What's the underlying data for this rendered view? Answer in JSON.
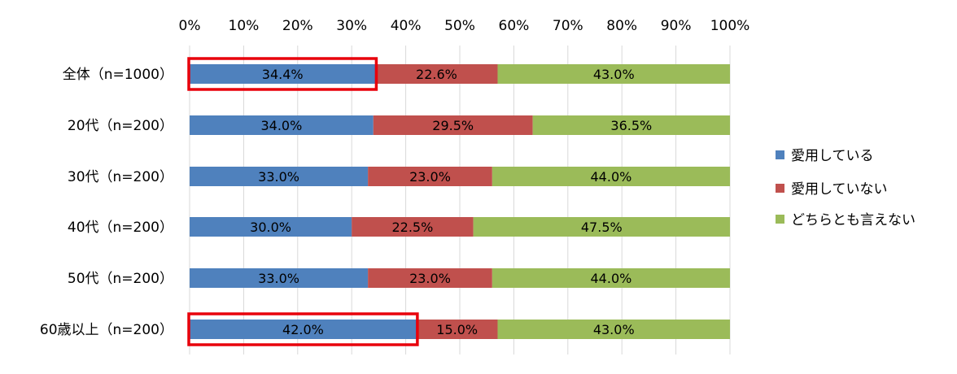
{
  "chart_data": {
    "type": "bar",
    "orientation": "horizontal",
    "stacked": "percent",
    "xlim": [
      0,
      100
    ],
    "x_ticks": [
      "0%",
      "10%",
      "20%",
      "30%",
      "40%",
      "50%",
      "60%",
      "70%",
      "80%",
      "90%",
      "100%"
    ],
    "categories": [
      "全体（n=1000）",
      "20代（n=200）",
      "30代（n=200）",
      "40代（n=200）",
      "50代（n=200）",
      "60歳以上（n=200）"
    ],
    "series": [
      {
        "name": "愛用している",
        "color": "#4f81bd",
        "values": [
          34.4,
          34.0,
          33.0,
          30.0,
          33.0,
          42.0
        ],
        "labels": [
          "34.4%",
          "34.0%",
          "33.0%",
          "30.0%",
          "33.0%",
          "42.0%"
        ]
      },
      {
        "name": "愛用していない",
        "color": "#c0504d",
        "values": [
          22.6,
          29.5,
          23.0,
          22.5,
          23.0,
          15.0
        ],
        "labels": [
          "22.6%",
          "29.5%",
          "23.0%",
          "22.5%",
          "23.0%",
          "15.0%"
        ]
      },
      {
        "name": "どちらとも言えない",
        "color": "#9bbb59",
        "values": [
          43.0,
          36.5,
          44.0,
          47.5,
          44.0,
          43.0
        ],
        "labels": [
          "43.0%",
          "36.5%",
          "44.0%",
          "47.5%",
          "44.0%",
          "43.0%"
        ]
      }
    ],
    "highlight": {
      "color": "#e8000b",
      "category_indices": [
        0,
        5
      ],
      "series_index": 0
    },
    "grid": true,
    "legend_position": "right"
  }
}
